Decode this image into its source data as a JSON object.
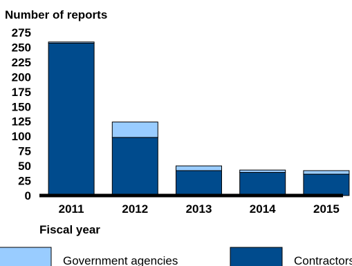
{
  "chart_data": {
    "type": "bar",
    "stacked": true,
    "ylabel": "Number of reports",
    "xlabel": "Fiscal year",
    "categories": [
      "2011",
      "2012",
      "2013",
      "2014",
      "2015"
    ],
    "yticks": [
      0,
      25,
      50,
      75,
      100,
      125,
      150,
      175,
      200,
      225,
      250,
      275
    ],
    "ylim": [
      0,
      275
    ],
    "series": [
      {
        "name": "Contractors",
        "color": "#004b8d",
        "values": [
          257,
          98,
          42,
          39,
          36
        ]
      },
      {
        "name": "Government agencies",
        "color": "#99ccff",
        "values": [
          2,
          26,
          8,
          4,
          6
        ]
      }
    ],
    "legend": {
      "placement": "bottom",
      "items": [
        {
          "label": "Government agencies",
          "color": "#99ccff"
        },
        {
          "label": "Contractors",
          "color": "#004b8d"
        }
      ]
    },
    "grid": false
  }
}
